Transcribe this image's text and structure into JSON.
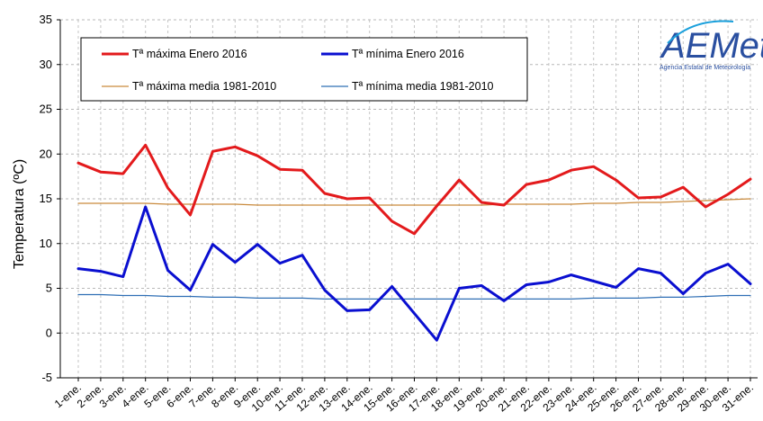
{
  "chart_data": {
    "type": "line",
    "ylabel": "Temperatura (ºC)",
    "ylim": [
      -5,
      35
    ],
    "yticks": [
      -5,
      0,
      5,
      10,
      15,
      20,
      25,
      30,
      35
    ],
    "grid": true,
    "legend_position": "top-left",
    "categories": [
      "1-ene.",
      "2-ene.",
      "3-ene.",
      "4-ene.",
      "5-ene.",
      "6-ene.",
      "7-ene.",
      "8-ene.",
      "9-ene.",
      "10-ene.",
      "11-ene.",
      "12-ene.",
      "13-ene.",
      "14-ene.",
      "15-ene.",
      "16-ene.",
      "17-ene.",
      "18-ene.",
      "19-ene.",
      "20-ene.",
      "21-ene.",
      "22-ene.",
      "23-ene.",
      "24-ene.",
      "25-ene.",
      "26-ene.",
      "27-ene.",
      "28-ene.",
      "29-ene.",
      "30-ene.",
      "31-ene."
    ],
    "series": [
      {
        "name": "Tª máxima Enero 2016",
        "color": "#e31a1c",
        "width": 3,
        "values": [
          19.0,
          18.0,
          17.8,
          21.0,
          16.2,
          13.2,
          20.3,
          20.8,
          19.8,
          18.3,
          18.2,
          15.6,
          15.0,
          15.1,
          12.5,
          11.1,
          14.2,
          17.1,
          14.6,
          14.3,
          16.6,
          17.1,
          18.2,
          18.6,
          17.1,
          15.1,
          15.2,
          16.3,
          14.1,
          15.5,
          17.2
        ]
      },
      {
        "name": "Tª mínima Enero 2016",
        "color": "#0a0fd0",
        "width": 3,
        "values": [
          7.2,
          6.9,
          6.3,
          14.1,
          7.0,
          4.8,
          9.9,
          7.9,
          9.9,
          7.8,
          8.7,
          4.8,
          2.5,
          2.6,
          5.2,
          2.2,
          -0.8,
          5.0,
          5.3,
          3.6,
          5.4,
          5.7,
          6.5,
          5.8,
          5.1,
          7.2,
          6.7,
          4.4,
          6.7,
          7.7,
          5.5
        ]
      },
      {
        "name": "Tª máxima media 1981-2010",
        "color": "#c98a3c",
        "width": 1.2,
        "values": [
          14.5,
          14.5,
          14.5,
          14.5,
          14.4,
          14.4,
          14.4,
          14.4,
          14.3,
          14.3,
          14.3,
          14.3,
          14.3,
          14.3,
          14.3,
          14.3,
          14.3,
          14.3,
          14.3,
          14.4,
          14.4,
          14.4,
          14.4,
          14.5,
          14.5,
          14.6,
          14.6,
          14.7,
          14.8,
          14.9,
          15.0
        ]
      },
      {
        "name": "Tª mínima media 1981-2010",
        "color": "#2f6fb5",
        "width": 1.2,
        "values": [
          4.3,
          4.3,
          4.2,
          4.2,
          4.1,
          4.1,
          4.0,
          4.0,
          3.9,
          3.9,
          3.9,
          3.8,
          3.8,
          3.8,
          3.8,
          3.8,
          3.8,
          3.8,
          3.8,
          3.8,
          3.8,
          3.8,
          3.8,
          3.9,
          3.9,
          3.9,
          4.0,
          4.0,
          4.1,
          4.2,
          4.2
        ]
      }
    ]
  },
  "logo": {
    "text": "AEMet",
    "subtitle": "Agencia Estatal de Meteorología",
    "color": "#2a4fa0",
    "accent": "#1aa0dc"
  }
}
